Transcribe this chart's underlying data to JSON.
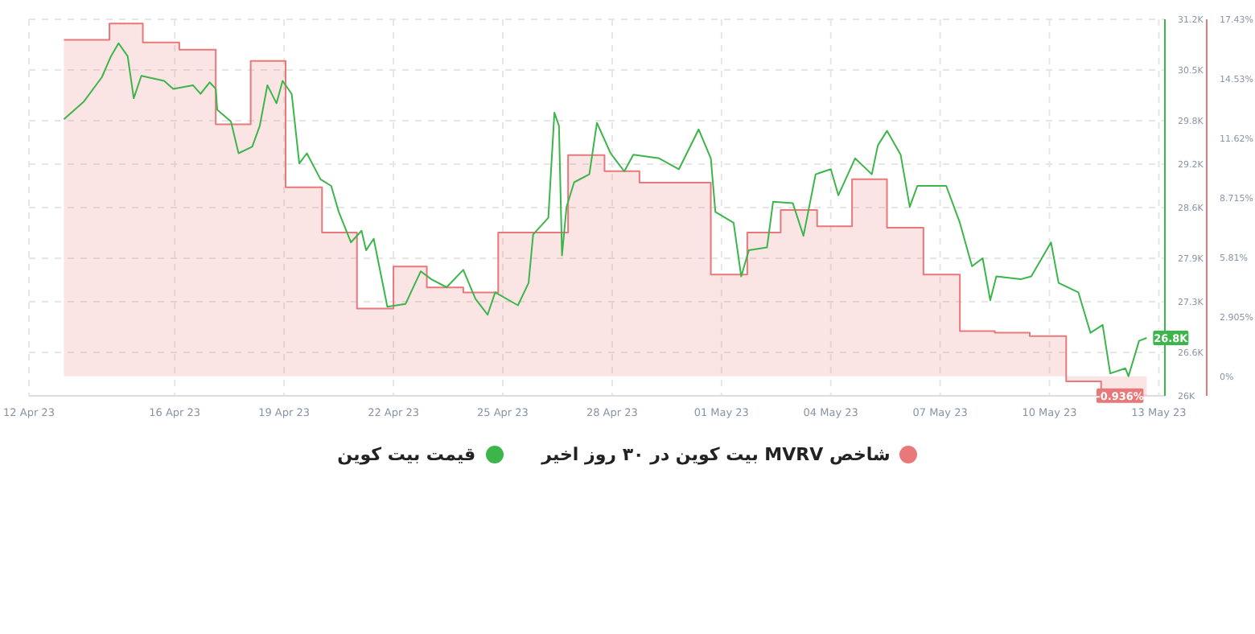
{
  "chart_data": {
    "type": "line",
    "xlim": [
      "--04-12",
      "--05-13T04:00"
    ],
    "xticks": [
      {
        "value": "--04-12",
        "label": "12 Apr 23"
      },
      {
        "value": "--04-16",
        "label": "16 Apr 23"
      },
      {
        "value": "--04-19",
        "label": "19 Apr 23"
      },
      {
        "value": "--04-22",
        "label": "22 Apr 23"
      },
      {
        "value": "--04-25",
        "label": "25 Apr 23"
      },
      {
        "value": "--04-28",
        "label": "28 Apr 23"
      },
      {
        "value": "--05-01",
        "label": "01 May 23"
      },
      {
        "value": "--05-04",
        "label": "04 May 23"
      },
      {
        "value": "--05-07",
        "label": "07 May 23"
      },
      {
        "value": "--05-10",
        "label": "10 May 23"
      },
      {
        "value": "--05-13",
        "label": "13 May 23"
      }
    ],
    "ylim": [
      26,
      31.2
    ],
    "yticks": [
      {
        "value": 26,
        "label": "26K"
      },
      {
        "value": 26.6,
        "label": "26.6K"
      },
      {
        "value": 27.3,
        "label": "27.3K"
      },
      {
        "value": 27.9,
        "label": "27.9K"
      },
      {
        "value": 28.6,
        "label": "28.6K"
      },
      {
        "value": 29.2,
        "label": "29.2K"
      },
      {
        "value": 29.8,
        "label": "29.8K"
      },
      {
        "value": 30.5,
        "label": "30.5K"
      },
      {
        "value": 31.2,
        "label": "31.2K"
      }
    ],
    "y2lim": [
      -0.95,
      17.43
    ],
    "y2ticks": [
      {
        "value": 0,
        "label": "0%"
      },
      {
        "value": 2.905,
        "label": "2.905%"
      },
      {
        "value": 5.81,
        "label": "5.81%"
      },
      {
        "value": 8.715,
        "label": "8.715%"
      },
      {
        "value": 11.62,
        "label": "11.62%"
      },
      {
        "value": 14.53,
        "label": "14.53%"
      },
      {
        "value": 17.43,
        "label": "17.43%"
      }
    ],
    "grid": true,
    "legend": "bottom",
    "series": [
      {
        "name": "شاخص MVRV بیت کوین در ۳۰ روز اخیر",
        "type": "step",
        "axis": "y2",
        "color": "#e8787a",
        "x": [
          "--04-12T23:00",
          "--04-14T05:00",
          "--04-15T03:00",
          "--04-16T03:00",
          "--04-17T03:00",
          "--04-18T02:00",
          "--04-19T01:00",
          "--04-20T01:00",
          "--04-21T00:00",
          "--04-22T00:00",
          "--04-22T22:00",
          "--04-23T22:00",
          "--04-24T21:00",
          "--04-26T19:00",
          "--04-27T19:00",
          "--04-28T18:00",
          "--04-30T17:00",
          "--05-01T17:00",
          "--05-02T15:00",
          "--05-03T15:00",
          "--05-04T14:00",
          "--05-05T13:00",
          "--05-06T13:00",
          "--05-07T13:00",
          "--05-08T12:00",
          "--05-09T11:00",
          "--05-10T11:00",
          "--05-11T10:00",
          "--05-12T16:00"
        ],
        "values": [
          16.43,
          17.22,
          16.3,
          15.95,
          12.3,
          15.4,
          9.23,
          7.02,
          3.31,
          5.36,
          4.34,
          4.1,
          7.02,
          10.8,
          10.02,
          9.46,
          4.97,
          7.02,
          8.12,
          7.33,
          9.62,
          7.26,
          4.97,
          2.21,
          2.13,
          1.97,
          -0.24,
          -0.936,
          -0.936
        ],
        "value_labels": [
          null,
          null,
          null,
          null,
          null,
          null,
          null,
          null,
          null,
          null,
          null,
          null,
          null,
          null,
          null,
          null,
          null,
          null,
          null,
          null,
          null,
          null,
          null,
          null,
          null,
          null,
          null,
          null,
          "-0.936%"
        ]
      },
      {
        "name": "قیمت بیت کوین",
        "type": "line",
        "color": "#3cb54a",
        "x": [
          "--04-12T23:00",
          "--04-13T12:00",
          "--04-14T00:00",
          "--04-14T06:00",
          "--04-14T11:00",
          "--04-14T17:00",
          "--04-14T21:00",
          "--04-15T02:00",
          "--04-15T17:00",
          "--04-15T23:00",
          "--04-16T12:00",
          "--04-16T17:00",
          "--04-16T23:00",
          "--04-17T03:00",
          "--04-17T04:00",
          "--04-17T13:00",
          "--04-17T18:00",
          "--04-18T03:00",
          "--04-18T08:00",
          "--04-18T13:00",
          "--04-18T19:00",
          "--04-18T23:00",
          "--04-19T05:00",
          "--04-19T10:00",
          "--04-19T15:00",
          "--04-20T00:00",
          "--04-20T07:00",
          "--04-20T12:00",
          "--04-20T20:00",
          "--04-21T03:00",
          "--04-21T06:00",
          "--04-21T11:00",
          "--04-21T20:00",
          "--04-22T08:00",
          "--04-22T18:00",
          "--04-23T01:00",
          "--04-23T11:00",
          "--04-23T22:00",
          "--04-24T06:00",
          "--04-24T14:00",
          "--04-24T19:00",
          "--04-25T10:00",
          "--04-25T17:00",
          "--04-25T20:00",
          "--04-26T06:00",
          "--04-26T10:00",
          "--04-26T13:00",
          "--04-26T15:00",
          "--04-26T18:00",
          "--04-26T23:00",
          "--04-27T09:00",
          "--04-27T14:00",
          "--04-27T23:00",
          "--04-28T08:00",
          "--04-28T14:00",
          "--04-29T07:00",
          "--04-29T20:00",
          "--04-30T09:00",
          "--04-30T17:00",
          "--04-30T20:00",
          "--05-01T08:00",
          "--05-01T13:00",
          "--05-01T18:00",
          "--05-02T06:00",
          "--05-02T10:00",
          "--05-02T23:00",
          "--05-03T06:00",
          "--05-03T14:00",
          "--05-04T00:00",
          "--05-04T05:00",
          "--05-04T16:00",
          "--05-05T03:00",
          "--05-05T07:00",
          "--05-05T13:00",
          "--05-05T22:00",
          "--05-06T04:00",
          "--05-06T09:00",
          "--05-07T04:00",
          "--05-07T13:00",
          "--05-07T21:00",
          "--05-08T04:00",
          "--05-08T09:00",
          "--05-08T13:00",
          "--05-09T05:00",
          "--05-09T12:00",
          "--05-10T01:00",
          "--05-10T06:00",
          "--05-10T19:00",
          "--05-11T03:00",
          "--05-11T11:00",
          "--05-11T16:00",
          "--05-12T02:00",
          "--05-12T04:00",
          "--05-12T11:00",
          "--05-12T16:00"
        ],
        "values": [
          29.82,
          30.06,
          30.4,
          30.69,
          30.87,
          30.69,
          30.11,
          30.42,
          30.35,
          30.24,
          30.29,
          30.17,
          30.33,
          30.24,
          29.95,
          29.79,
          29.35,
          29.44,
          29.73,
          30.29,
          30.04,
          30.35,
          30.17,
          29.21,
          29.35,
          28.99,
          28.9,
          28.54,
          28.12,
          28.28,
          28.01,
          28.17,
          27.23,
          27.27,
          27.72,
          27.61,
          27.5,
          27.74,
          27.34,
          27.12,
          27.43,
          27.25,
          27.56,
          28.23,
          28.46,
          29.91,
          29.73,
          27.94,
          28.61,
          28.95,
          29.06,
          29.77,
          29.35,
          29.1,
          29.33,
          29.28,
          29.13,
          29.68,
          29.28,
          28.54,
          28.39,
          27.65,
          28.01,
          28.05,
          28.68,
          28.66,
          28.21,
          29.06,
          29.13,
          28.77,
          29.28,
          29.06,
          29.46,
          29.66,
          29.33,
          28.61,
          28.9,
          28.9,
          28.39,
          27.79,
          27.9,
          27.32,
          27.65,
          27.61,
          27.65,
          28.12,
          27.56,
          27.43,
          26.87,
          26.98,
          26.31,
          26.38,
          26.27,
          26.76,
          26.8
        ],
        "value_labels": [
          null,
          null,
          null,
          null,
          null,
          null,
          null,
          null,
          null,
          null,
          null,
          null,
          null,
          null,
          null,
          null,
          null,
          null,
          null,
          null,
          null,
          null,
          null,
          null,
          null,
          null,
          null,
          null,
          null,
          null,
          null,
          null,
          null,
          null,
          null,
          null,
          null,
          null,
          null,
          null,
          null,
          null,
          null,
          null,
          null,
          null,
          null,
          null,
          null,
          null,
          null,
          null,
          null,
          null,
          null,
          null,
          null,
          null,
          null,
          null,
          null,
          null,
          null,
          null,
          null,
          null,
          null,
          null,
          null,
          null,
          null,
          null,
          null,
          null,
          null,
          null,
          null,
          null,
          null,
          null,
          null,
          null,
          null,
          null,
          null,
          null,
          null,
          null,
          null,
          null,
          null,
          null,
          null,
          null,
          "26.8K"
        ]
      }
    ]
  }
}
